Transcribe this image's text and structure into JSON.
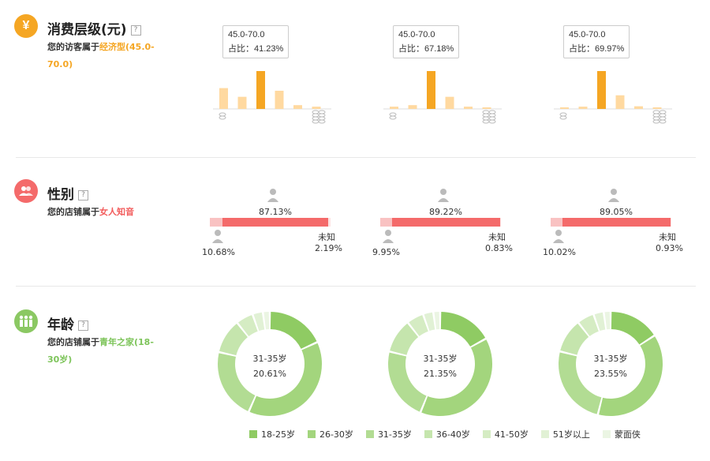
{
  "colors": {
    "orange": "#f5a623",
    "orange_light": "#ffd9a0",
    "red": "#f46a6a",
    "red_light": "#f9c2c2",
    "green_main": "#93cd6b",
    "green_light": "#b7de9e"
  },
  "consumption": {
    "title": "消费层级(元)",
    "help": "?",
    "desc_prefix": "您的访客属于",
    "desc_highlight": "经济型(45.0-70.0)",
    "charts": [
      {
        "tooltip_range": "45.0-70.0",
        "tooltip_ratio": "占比：41.23%",
        "values": [
          0.55,
          0.32,
          1.0,
          0.48,
          0.1,
          0.06
        ],
        "highlight": 2
      },
      {
        "tooltip_range": "45.0-70.0",
        "tooltip_ratio": "占比：67.18%",
        "values": [
          0.06,
          0.1,
          1.0,
          0.32,
          0.06,
          0.04
        ],
        "highlight": 2
      },
      {
        "tooltip_range": "45.0-70.0",
        "tooltip_ratio": "占比：69.97%",
        "values": [
          0.03,
          0.06,
          1.0,
          0.36,
          0.07,
          0.04
        ],
        "highlight": 2
      }
    ]
  },
  "gender": {
    "title": "性别",
    "help": "?",
    "desc_prefix": "您的店铺属于",
    "desc_highlight": "女人知音",
    "unknown_label": "未知",
    "charts": [
      {
        "female": "87.13%",
        "male": "10.68%",
        "unknown": "2.19%",
        "female_value": 0.8713,
        "male_value": 0.1068
      },
      {
        "female": "89.22%",
        "male": "9.95%",
        "unknown": "0.83%",
        "female_value": 0.8922,
        "male_value": 0.0995
      },
      {
        "female": "89.05%",
        "male": "10.02%",
        "unknown": "0.93%",
        "female_value": 0.8905,
        "male_value": 0.1002
      }
    ]
  },
  "age": {
    "title": "年龄",
    "help": "?",
    "desc_prefix": "您的店铺属于",
    "desc_highlight": "青年之家(18-30岁)",
    "charts": [
      {
        "center_label": "31-35岁",
        "center_value": "20.61%",
        "values": [
          0.17,
          0.36,
          0.2061,
          0.1,
          0.05,
          0.03,
          0.02
        ]
      },
      {
        "center_label": "31-35岁",
        "center_value": "21.35%",
        "values": [
          0.16,
          0.37,
          0.2135,
          0.1,
          0.05,
          0.03,
          0.02
        ]
      },
      {
        "center_label": "31-35岁",
        "center_value": "23.55%",
        "values": [
          0.15,
          0.36,
          0.2355,
          0.1,
          0.05,
          0.03,
          0.02
        ]
      }
    ],
    "legend": [
      {
        "label": "18-25岁",
        "color": "#8fcb63"
      },
      {
        "label": "26-30岁",
        "color": "#a3d57d"
      },
      {
        "label": "31-35岁",
        "color": "#b2dc93"
      },
      {
        "label": "36-40岁",
        "color": "#c5e5ad"
      },
      {
        "label": "41-50岁",
        "color": "#d5ecc3"
      },
      {
        "label": "51岁以上",
        "color": "#e1f1d5"
      },
      {
        "label": "蒙面侠",
        "color": "#ebf5e3"
      }
    ]
  }
}
